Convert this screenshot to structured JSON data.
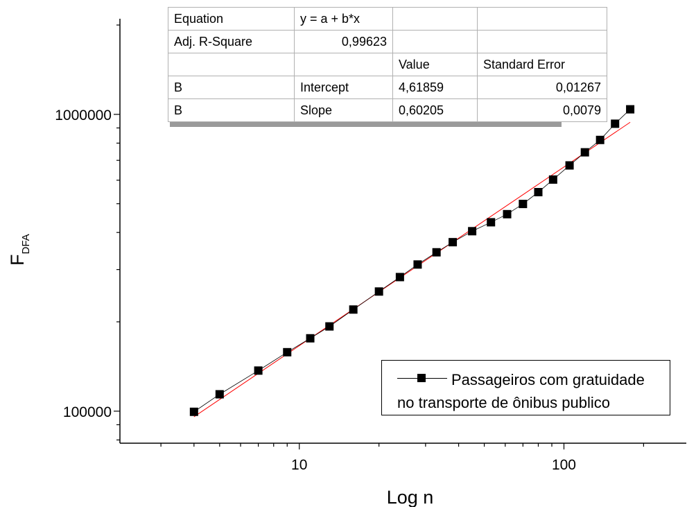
{
  "fit_table": {
    "rows": [
      [
        "Equation",
        "y = a + b*x",
        "",
        ""
      ],
      [
        "Adj. R-Square",
        "0,99623",
        "",
        ""
      ],
      [
        "",
        "",
        "Value",
        "Standard Error"
      ],
      [
        "B",
        "Intercept",
        "4,61859",
        "0,01267"
      ],
      [
        "B",
        "Slope",
        "0,60205",
        "0,0079"
      ]
    ]
  },
  "legend": {
    "line1": "Passageiros com gratuidade",
    "line2": "no transporte de ônibus publico"
  },
  "chart_data": {
    "type": "scatter",
    "xlabel": "Log n",
    "ylabel_main": "F",
    "ylabel_sub": "DFA",
    "x_scale": "log",
    "y_scale": "log",
    "xlim": [
      2.1,
      290
    ],
    "ylim": [
      78000,
      2100000
    ],
    "x_ticks": [
      10,
      100
    ],
    "x_tick_labels": [
      "10",
      "100"
    ],
    "y_ticks": [
      100000,
      1000000
    ],
    "y_tick_labels": [
      "100000",
      "1000000"
    ],
    "grid": false,
    "legend_position": "bottom-right",
    "series": [
      {
        "name": "Passageiros com gratuidade no transporte de ônibus publico",
        "marker": "square",
        "color": "#000000",
        "points": [
          [
            4,
            99500
          ],
          [
            5,
            114000
          ],
          [
            7,
            137000
          ],
          [
            9,
            158000
          ],
          [
            11,
            176000
          ],
          [
            13,
            193000
          ],
          [
            16,
            220000
          ],
          [
            20,
            253000
          ],
          [
            24,
            283000
          ],
          [
            28,
            312000
          ],
          [
            33,
            343000
          ],
          [
            38,
            371000
          ],
          [
            45,
            404000
          ],
          [
            53,
            433000
          ],
          [
            61,
            461000
          ],
          [
            70,
            499000
          ],
          [
            80,
            547000
          ],
          [
            91,
            603000
          ],
          [
            105,
            673000
          ],
          [
            120,
            745000
          ],
          [
            137,
            820000
          ],
          [
            156,
            930000
          ],
          [
            178,
            1040000
          ]
        ]
      }
    ],
    "fit": {
      "color": "#ff0000",
      "intercept": 4.61859,
      "slope": 0.60205,
      "x_range": [
        4,
        178
      ]
    }
  }
}
